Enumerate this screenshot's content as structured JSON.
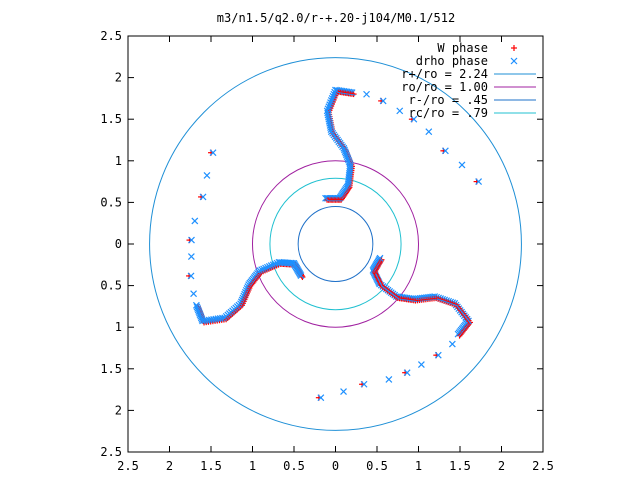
{
  "chart_data": {
    "type": "scatter",
    "title": "m3/n1.5/q2.0/r-+.20-j104/M0.1/512",
    "xlabel": "",
    "ylabel": "",
    "xlim": [
      -2.5,
      2.5
    ],
    "ylim": [
      -2.5,
      2.5
    ],
    "x_ticks": [
      -2.5,
      -2,
      -1.5,
      -1,
      -0.5,
      0,
      0.5,
      1,
      1.5,
      2,
      2.5
    ],
    "y_ticks": [
      -2.5,
      -2,
      -1.5,
      -1,
      -0.5,
      0,
      0.5,
      1,
      1.5,
      2,
      2.5
    ],
    "x_tick_labels": [
      "2.5",
      "2",
      "1.5",
      "1",
      "0.5",
      "0",
      "0.5",
      "1",
      "1.5",
      "2",
      "2.5"
    ],
    "y_tick_labels": [
      "2.5",
      "2",
      "1.5",
      "1",
      "0.5",
      "0",
      "0.5",
      "1",
      "1.5",
      "2",
      "2.5"
    ],
    "grid": false,
    "legend_position": "top-right",
    "legend": [
      {
        "label": "W phase",
        "marker": "+",
        "color": "#ff0000"
      },
      {
        "label": "drho phase",
        "marker": "x",
        "color": "#1e90ff"
      },
      {
        "label": "r+/ro = 2.24",
        "kind": "circle",
        "radius": 2.24,
        "color": "#1e8fd6"
      },
      {
        "label": "ro/ro = 1.00",
        "kind": "circle",
        "radius": 1.0,
        "color": "#a020a0"
      },
      {
        "label": "r-/ro = .45",
        "kind": "circle",
        "radius": 0.45,
        "color": "#1e70c8"
      },
      {
        "label": "rc/ro = .79",
        "kind": "circle",
        "radius": 0.79,
        "color": "#20c0d0"
      }
    ],
    "spiral_arms": {
      "count": 3,
      "description": "three-armed phase pattern; points sampled along each arm",
      "base_arm": [
        [
          0.2,
          1.82
        ],
        [
          0.0,
          1.85
        ],
        [
          -0.1,
          1.6
        ],
        [
          -0.05,
          1.35
        ],
        [
          0.1,
          1.15
        ],
        [
          0.18,
          0.95
        ],
        [
          0.15,
          0.7
        ],
        [
          0.05,
          0.55
        ],
        [
          -0.12,
          0.55
        ]
      ],
      "outer_arc_points": [
        [
          0.35,
          1.8
        ],
        [
          0.55,
          1.72
        ],
        [
          0.75,
          1.6
        ],
        [
          0.92,
          1.5
        ],
        [
          1.1,
          1.35
        ],
        [
          1.3,
          1.12
        ],
        [
          1.5,
          0.95
        ],
        [
          1.7,
          0.75
        ]
      ]
    }
  }
}
